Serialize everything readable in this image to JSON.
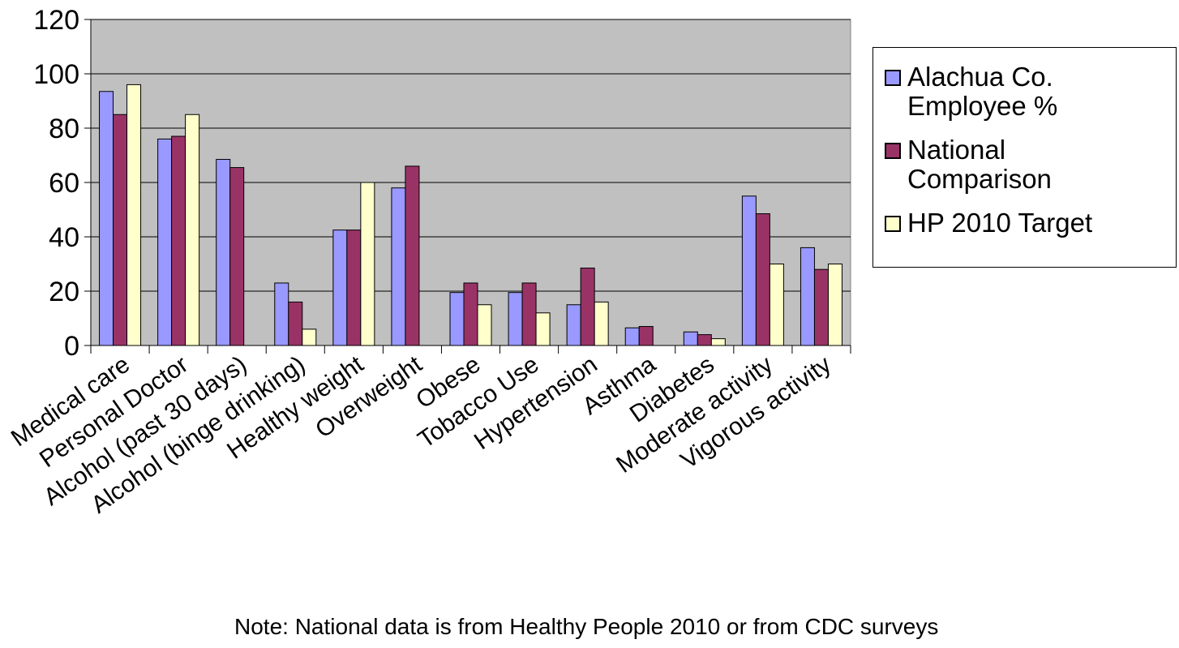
{
  "chart_data": {
    "type": "bar",
    "categories": [
      "Medical care",
      "Personal Doctor",
      "Alcohol (past 30 days)",
      "Alcohol  (binge drinking)",
      "Healthy weight",
      "Overweight",
      "Obese",
      "Tobacco Use",
      "Hypertension",
      "Asthma",
      "Diabetes",
      "Moderate activity",
      "Vigorous activity"
    ],
    "series": [
      {
        "name": "Alachua Co. Employee %",
        "color": "#9999ff",
        "values": [
          93.5,
          76,
          68.5,
          23,
          42.5,
          58,
          19.5,
          19.5,
          15,
          6.5,
          5,
          55,
          36
        ]
      },
      {
        "name": "National Comparison",
        "color": "#993366",
        "values": [
          85,
          77,
          65.5,
          16,
          42.5,
          66,
          23,
          23,
          28.5,
          7,
          4,
          48.5,
          28
        ]
      },
      {
        "name": "HP 2010 Target",
        "color": "#ffffcc",
        "values": [
          96,
          85,
          null,
          6,
          60,
          null,
          15,
          12,
          16,
          null,
          2.5,
          30,
          30
        ]
      }
    ],
    "ylim": [
      0,
      120
    ],
    "yticks": [
      "0",
      "20",
      "40",
      "60",
      "80",
      "100",
      "120"
    ],
    "plot_background": "#c0c0c0",
    "grid": true,
    "legend_position": "right"
  },
  "note": "Note: National data is from Healthy People 2010 or from CDC surveys"
}
